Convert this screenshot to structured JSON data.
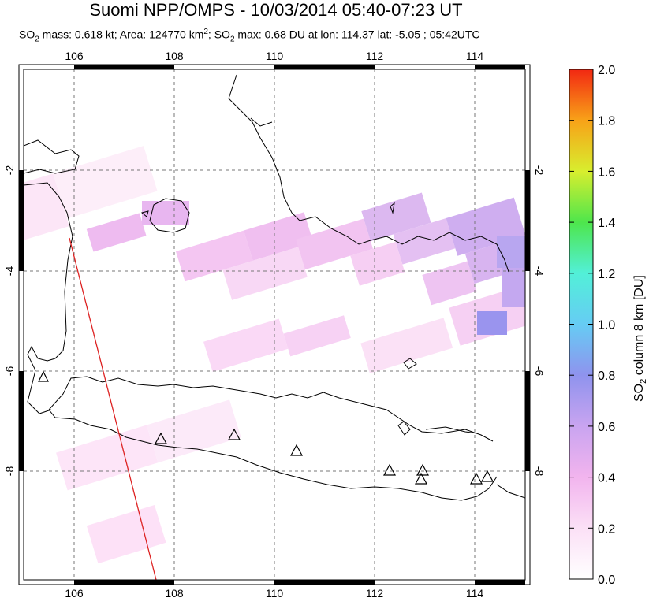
{
  "title": "Suomi NPP/OMPS - 10/03/2014 05:40-07:23 UT",
  "subtitle": {
    "so2_prefix": "SO",
    "so2_sub": "2",
    "mass_text": " mass: 0.618 kt; Area: 124770 km",
    "area_sup": "2",
    "max_prefix": "; SO",
    "max_sub": "2",
    "max_text": " max: 0.68 DU at lon: 114.37 lat: -5.05 ; 05:42UTC"
  },
  "map": {
    "lon_ticks": [
      "106",
      "108",
      "110",
      "112",
      "114"
    ],
    "lat_ticks": [
      "-2",
      "-4",
      "-6",
      "-8"
    ],
    "lon_values": [
      106,
      108,
      110,
      112,
      114
    ],
    "lat_values": [
      -2,
      -4,
      -6,
      -8
    ],
    "lon_range": [
      105,
      115
    ],
    "lat_range": [
      -10.2,
      -0.1
    ],
    "volcano_marker": "triangle-icon",
    "grid": true,
    "orbit_track_color": "#dd2222"
  },
  "colorbar": {
    "ticks": [
      "2.0",
      "1.8",
      "1.6",
      "1.4",
      "1.2",
      "1.0",
      "0.8",
      "0.6",
      "0.4",
      "0.2",
      "0.0"
    ],
    "tick_values": [
      2.0,
      1.8,
      1.6,
      1.4,
      1.2,
      1.0,
      0.8,
      0.6,
      0.4,
      0.2,
      0.0
    ],
    "range": [
      0,
      2
    ],
    "label_prefix": "SO",
    "label_sub": "2",
    "label_suffix": " column 8 km [DU]"
  }
}
